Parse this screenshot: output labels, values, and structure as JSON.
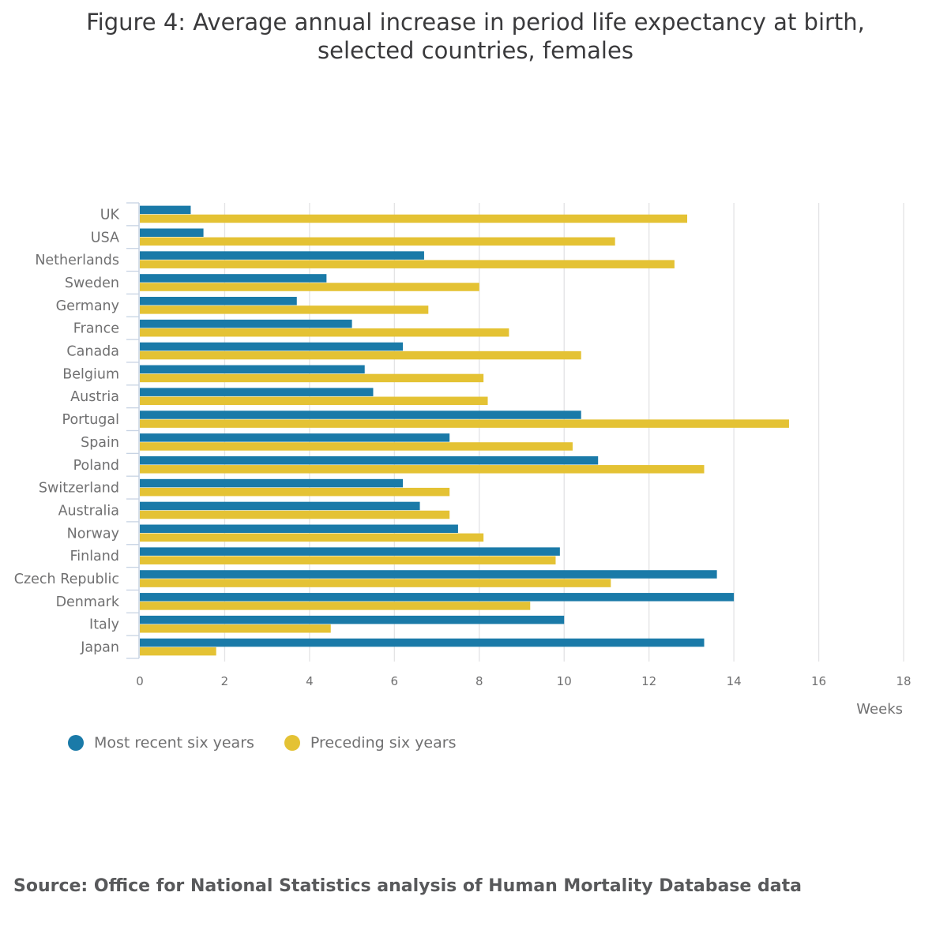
{
  "chart_data": {
    "type": "bar",
    "orientation": "horizontal",
    "title": "Figure 4: Average annual increase in period life expectancy at birth, selected countries, females",
    "title_lines": [
      "Figure 4: Average annual increase in period life expectancy at birth,",
      "selected countries, females"
    ],
    "xlabel": "Weeks",
    "ylabel": "",
    "xlim": [
      0,
      18
    ],
    "xticks": [
      0,
      2,
      4,
      6,
      8,
      10,
      12,
      14,
      16,
      18
    ],
    "grid": true,
    "legend_position": "bottom-left",
    "categories": [
      "UK",
      "USA",
      "Netherlands",
      "Sweden",
      "Germany",
      "France",
      "Canada",
      "Belgium",
      "Austria",
      "Portugal",
      "Spain",
      "Poland",
      "Switzerland",
      "Australia",
      "Norway",
      "Finland",
      "Czech Republic",
      "Denmark",
      "Italy",
      "Japan"
    ],
    "series": [
      {
        "name": "Most recent six years",
        "color": "#1a7aa8",
        "values": [
          1.2,
          1.5,
          6.7,
          4.4,
          3.7,
          5.0,
          6.2,
          5.3,
          5.5,
          10.4,
          7.3,
          10.8,
          6.2,
          6.6,
          7.5,
          9.9,
          13.6,
          14.0,
          10.0,
          13.3
        ]
      },
      {
        "name": "Preceding six years",
        "color": "#e4c234",
        "values": [
          12.9,
          11.2,
          12.6,
          8.0,
          6.8,
          8.7,
          10.4,
          8.1,
          8.2,
          15.3,
          10.2,
          13.3,
          7.3,
          7.3,
          8.1,
          9.8,
          11.1,
          9.2,
          4.5,
          1.8
        ]
      }
    ]
  },
  "source": "Source: Office for National Statistics analysis of Human Mortality Database data"
}
